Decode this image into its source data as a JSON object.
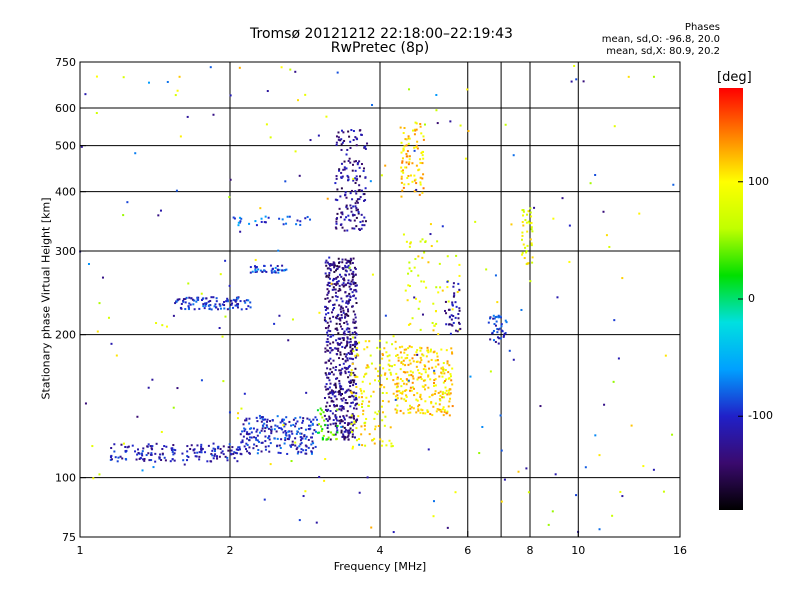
{
  "title": "Tromsø 20121212 22:18:00–22:19:43",
  "subtitle": "RwPretec (8p)",
  "phases": {
    "title": "Phases",
    "line_o": "mean, sd,O: -96.8, 20.0",
    "line_x": "mean, sd,X:  80.9, 20.2"
  },
  "colorbar": {
    "unit": "[deg]",
    "ticks": [
      "100",
      "0",
      "-100"
    ],
    "tick_values": [
      100,
      0,
      -100
    ],
    "range": [
      -180,
      180
    ],
    "colors": [
      "#000000",
      "#3a0a6e",
      "#2020c8",
      "#00a0ff",
      "#00e0e0",
      "#00e000",
      "#c0ff00",
      "#ffff00",
      "#ff8000",
      "#ff0000"
    ]
  },
  "chart_data": {
    "type": "scatter",
    "xlabel": "Frequency [MHz]",
    "ylabel": "Stationary phase Virtual Height [km]",
    "x_scale": "log",
    "y_scale": "log",
    "xlim": [
      1,
      16
    ],
    "ylim": [
      75,
      750
    ],
    "x_ticks": [
      1,
      2,
      4,
      6,
      8,
      10,
      16
    ],
    "x_tick_labels": [
      "1",
      "2",
      "4",
      "6",
      "8",
      "10",
      "16"
    ],
    "y_ticks": [
      75,
      100,
      200,
      300,
      400,
      500,
      600,
      750
    ],
    "y_tick_labels": [
      "75",
      "100",
      "200",
      "300",
      "400",
      "500",
      "600",
      "750"
    ],
    "grid": true,
    "point_color_encoding": "phase in degrees (colorbar)",
    "clusters": [
      {
        "x": [
          1.15,
          2.1
        ],
        "y": [
          108,
          118
        ],
        "phase": -110,
        "n": 160
      },
      {
        "x": [
          2.1,
          3.0
        ],
        "y": [
          112,
          135
        ],
        "phase": -100,
        "n": 220
      },
      {
        "x": [
          1.55,
          2.2
        ],
        "y": [
          226,
          240
        ],
        "phase": -100,
        "n": 110
      },
      {
        "x": [
          2.2,
          2.6
        ],
        "y": [
          270,
          280
        ],
        "phase": -90,
        "n": 40
      },
      {
        "x": [
          2.0,
          2.9
        ],
        "y": [
          340,
          355
        ],
        "phase": -80,
        "n": 30
      },
      {
        "x": [
          3.1,
          3.6
        ],
        "y": [
          120,
          290
        ],
        "phase": -130,
        "n": 600
      },
      {
        "x": [
          3.25,
          3.75
        ],
        "y": [
          330,
          540
        ],
        "phase": -125,
        "n": 160
      },
      {
        "x": [
          3.5,
          4.3
        ],
        "y": [
          115,
          200
        ],
        "phase": 100,
        "n": 140
      },
      {
        "x": [
          4.3,
          5.6
        ],
        "y": [
          135,
          190
        ],
        "phase": 110,
        "n": 260
      },
      {
        "x": [
          4.4,
          4.9
        ],
        "y": [
          390,
          560
        ],
        "phase": 115,
        "n": 90
      },
      {
        "x": [
          4.5,
          5.8
        ],
        "y": [
          200,
          320
        ],
        "phase": 90,
        "n": 60
      },
      {
        "x": [
          5.4,
          5.8
        ],
        "y": [
          200,
          260
        ],
        "phase": -120,
        "n": 40
      },
      {
        "x": [
          6.6,
          7.2
        ],
        "y": [
          190,
          220
        ],
        "phase": -100,
        "n": 40
      },
      {
        "x": [
          7.7,
          8.1
        ],
        "y": [
          280,
          370
        ],
        "phase": 90,
        "n": 40
      },
      {
        "x": [
          3.0,
          3.3
        ],
        "y": [
          120,
          140
        ],
        "phase": 30,
        "n": 30
      }
    ]
  }
}
